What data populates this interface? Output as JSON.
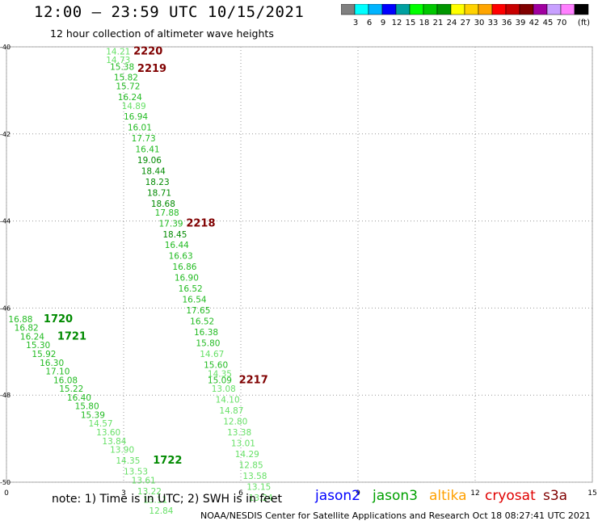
{
  "header": {
    "title": "12:00 – 23:59 UTC 10/15/2021",
    "subtitle": "12 hour collection of altimeter wave heights"
  },
  "colorbar": {
    "colors": [
      "#808080",
      "#00ffff",
      "#00b4ff",
      "#0000ff",
      "#00a0a0",
      "#00ff00",
      "#00c800",
      "#009600",
      "#ffff00",
      "#ffd200",
      "#ffa500",
      "#ff0000",
      "#c80000",
      "#800000",
      "#a000a0",
      "#c8a0ff",
      "#ff80ff",
      "#000000"
    ],
    "labels": [
      "3",
      "6",
      "9",
      "12",
      "15",
      "18",
      "21",
      "24",
      "27",
      "30",
      "33",
      "36",
      "39",
      "42",
      "45",
      "70"
    ],
    "unit": "(ft)"
  },
  "note": "note: 1) Time is in UTC; 2) SWH is in feet",
  "satellites": [
    {
      "name": "jason2",
      "color": "#0000ff"
    },
    {
      "name": "jason3",
      "color": "#00a000"
    },
    {
      "name": "altika",
      "color": "#ffa000"
    },
    {
      "name": "cryosat",
      "color": "#e00000"
    },
    {
      "name": "s3a",
      "color": "#800000"
    }
  ],
  "footer": "NOAA/NESDIS Center for Satellite Applications and Research   Oct 18 08:27:41 UTC 2021",
  "chart_data": {
    "type": "scatter",
    "xlim": [
      0,
      15
    ],
    "ylim": [
      -50,
      -40
    ],
    "x_ticks": [
      "0",
      "3",
      "6",
      "9",
      "12",
      "15"
    ],
    "y_ticks": [
      "-40",
      "-42",
      "-44",
      "-46",
      "-48",
      "-50"
    ],
    "grid": true,
    "points": [
      {
        "x": 2.55,
        "y": -40.1,
        "label": "14.21",
        "color": "#66e066"
      },
      {
        "x": 2.55,
        "y": -40.3,
        "label": "14.73",
        "color": "#66e066"
      },
      {
        "x": 2.65,
        "y": -40.45,
        "label": "15.38",
        "color": "#22bb22"
      },
      {
        "x": 2.75,
        "y": -40.7,
        "label": "15.82",
        "color": "#22bb22"
      },
      {
        "x": 2.8,
        "y": -40.9,
        "label": "15.72",
        "color": "#22bb22"
      },
      {
        "x": 2.85,
        "y": -41.15,
        "label": "16.24",
        "color": "#22bb22"
      },
      {
        "x": 2.95,
        "y": -41.35,
        "label": "14.89",
        "color": "#66e066"
      },
      {
        "x": 3.0,
        "y": -41.6,
        "label": "16.94",
        "color": "#22bb22"
      },
      {
        "x": 3.1,
        "y": -41.85,
        "label": "16.01",
        "color": "#22bb22"
      },
      {
        "x": 3.2,
        "y": -42.1,
        "label": "17.73",
        "color": "#22bb22"
      },
      {
        "x": 3.3,
        "y": -42.35,
        "label": "16.41",
        "color": "#22bb22"
      },
      {
        "x": 3.35,
        "y": -42.6,
        "label": "19.06",
        "color": "#008a00"
      },
      {
        "x": 3.45,
        "y": -42.85,
        "label": "18.44",
        "color": "#008a00"
      },
      {
        "x": 3.55,
        "y": -43.1,
        "label": "18.23",
        "color": "#008a00"
      },
      {
        "x": 3.6,
        "y": -43.35,
        "label": "18.71",
        "color": "#008a00"
      },
      {
        "x": 3.7,
        "y": -43.6,
        "label": "18.68",
        "color": "#008a00"
      },
      {
        "x": 3.8,
        "y": -43.8,
        "label": "17.88",
        "color": "#22bb22"
      },
      {
        "x": 3.9,
        "y": -44.05,
        "label": "17.39",
        "color": "#22bb22"
      },
      {
        "x": 4.0,
        "y": -44.3,
        "label": "18.45",
        "color": "#008a00"
      },
      {
        "x": 4.05,
        "y": -44.55,
        "label": "16.44",
        "color": "#22bb22"
      },
      {
        "x": 4.15,
        "y": -44.8,
        "label": "16.63",
        "color": "#22bb22"
      },
      {
        "x": 4.25,
        "y": -45.05,
        "label": "16.86",
        "color": "#22bb22"
      },
      {
        "x": 4.3,
        "y": -45.3,
        "label": "16.90",
        "color": "#22bb22"
      },
      {
        "x": 4.4,
        "y": -45.55,
        "label": "16.52",
        "color": "#22bb22"
      },
      {
        "x": 4.5,
        "y": -45.8,
        "label": "16.54",
        "color": "#22bb22"
      },
      {
        "x": 4.6,
        "y": -46.05,
        "label": "17.65",
        "color": "#22bb22"
      },
      {
        "x": 4.7,
        "y": -46.3,
        "label": "16.52",
        "color": "#22bb22"
      },
      {
        "x": 4.8,
        "y": -46.55,
        "label": "16.38",
        "color": "#22bb22"
      },
      {
        "x": 4.85,
        "y": -46.8,
        "label": "15.80",
        "color": "#22bb22"
      },
      {
        "x": 4.95,
        "y": -47.05,
        "label": "14.67",
        "color": "#66e066"
      },
      {
        "x": 5.05,
        "y": -47.3,
        "label": "15.60",
        "color": "#22bb22"
      },
      {
        "x": 5.15,
        "y": -47.5,
        "label": "14.35",
        "color": "#66e066"
      },
      {
        "x": 5.15,
        "y": -47.65,
        "label": "15.09",
        "color": "#22bb22"
      },
      {
        "x": 5.25,
        "y": -47.85,
        "label": "13.08",
        "color": "#66e066"
      },
      {
        "x": 5.35,
        "y": -48.1,
        "label": "14.10",
        "color": "#66e066"
      },
      {
        "x": 5.45,
        "y": -48.35,
        "label": "14.87",
        "color": "#66e066"
      },
      {
        "x": 5.55,
        "y": -48.6,
        "label": "12.80",
        "color": "#66e066"
      },
      {
        "x": 5.65,
        "y": -48.85,
        "label": "13.38",
        "color": "#66e066"
      },
      {
        "x": 5.75,
        "y": -49.1,
        "label": "13.01",
        "color": "#66e066"
      },
      {
        "x": 5.85,
        "y": -49.35,
        "label": "14.29",
        "color": "#66e066"
      },
      {
        "x": 5.95,
        "y": -49.6,
        "label": "12.85",
        "color": "#66e066"
      },
      {
        "x": 6.05,
        "y": -49.85,
        "label": "13.58",
        "color": "#66e066"
      },
      {
        "x": 6.15,
        "y": -50.1,
        "label": "13.15",
        "color": "#66e066"
      },
      {
        "x": 6.2,
        "y": -50.35,
        "label": "13.24",
        "color": "#66e066"
      },
      {
        "x": 0.05,
        "y": -46.25,
        "label": "16.88",
        "color": "#22bb22"
      },
      {
        "x": 0.2,
        "y": -46.45,
        "label": "16.82",
        "color": "#22bb22"
      },
      {
        "x": 0.35,
        "y": -46.65,
        "label": "16.24",
        "color": "#22bb22"
      },
      {
        "x": 0.5,
        "y": -46.85,
        "label": "15.30",
        "color": "#22bb22"
      },
      {
        "x": 0.65,
        "y": -47.05,
        "label": "15.92",
        "color": "#22bb22"
      },
      {
        "x": 0.85,
        "y": -47.25,
        "label": "16.30",
        "color": "#22bb22"
      },
      {
        "x": 1.0,
        "y": -47.45,
        "label": "17.10",
        "color": "#22bb22"
      },
      {
        "x": 1.2,
        "y": -47.65,
        "label": "16.08",
        "color": "#22bb22"
      },
      {
        "x": 1.35,
        "y": -47.85,
        "label": "15.22",
        "color": "#22bb22"
      },
      {
        "x": 1.55,
        "y": -48.05,
        "label": "16.40",
        "color": "#22bb22"
      },
      {
        "x": 1.75,
        "y": -48.25,
        "label": "15.80",
        "color": "#22bb22"
      },
      {
        "x": 1.9,
        "y": -48.45,
        "label": "15.39",
        "color": "#22bb22"
      },
      {
        "x": 2.1,
        "y": -48.65,
        "label": "14.57",
        "color": "#66e066"
      },
      {
        "x": 2.3,
        "y": -48.85,
        "label": "13.60",
        "color": "#66e066"
      },
      {
        "x": 2.45,
        "y": -49.05,
        "label": "13.84",
        "color": "#66e066"
      },
      {
        "x": 2.65,
        "y": -49.25,
        "label": "13.90",
        "color": "#66e066"
      },
      {
        "x": 2.8,
        "y": -49.5,
        "label": "14.35",
        "color": "#66e066"
      },
      {
        "x": 3.0,
        "y": -49.75,
        "label": "13.53",
        "color": "#66e066"
      },
      {
        "x": 3.2,
        "y": -49.95,
        "label": "13.61",
        "color": "#66e066"
      },
      {
        "x": 3.35,
        "y": -50.2,
        "label": "13.22",
        "color": "#66e066"
      },
      {
        "x": 3.5,
        "y": -50.4,
        "label": "13.11",
        "color": "#66e066"
      },
      {
        "x": 3.65,
        "y": -50.65,
        "label": "12.84",
        "color": "#66e066"
      }
    ],
    "time_labels": [
      {
        "text": "2220",
        "x": 3.25,
        "y": -40.1,
        "color": "#800000"
      },
      {
        "text": "2219",
        "x": 3.35,
        "y": -40.5,
        "color": "#800000"
      },
      {
        "text": "2218",
        "x": 4.6,
        "y": -44.05,
        "color": "#800000"
      },
      {
        "text": "2217",
        "x": 5.95,
        "y": -47.65,
        "color": "#800000"
      },
      {
        "text": "1720",
        "x": 0.95,
        "y": -46.25,
        "color": "#008a00"
      },
      {
        "text": "1721",
        "x": 1.3,
        "y": -46.65,
        "color": "#008a00"
      },
      {
        "text": "1722",
        "x": 3.75,
        "y": -49.5,
        "color": "#008a00"
      }
    ]
  }
}
